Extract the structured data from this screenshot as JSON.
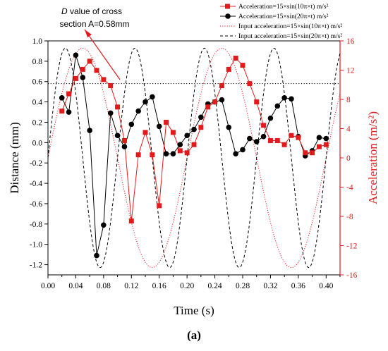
{
  "figure_label": "(a)",
  "colors": {
    "accel_10": "#e31a1c",
    "accel_20": "#000000",
    "input_10": "#e31a1c",
    "input_20": "#000000",
    "threshold": "#000000",
    "right_axis": "#e31a1c",
    "arrow": "#e31a1c"
  },
  "chart_data": {
    "type": "line",
    "xlabel": "Time (s)",
    "ylabel_left": "Distance (mm)",
    "ylabel_right": "Acceleration (m/s²)",
    "xlim": [
      0.0,
      0.42
    ],
    "ylim_left": [
      -1.3,
      1.0
    ],
    "ylim_right": [
      -16,
      16
    ],
    "x_ticks": [
      "0.00",
      "0.04",
      "0.08",
      "0.12",
      "0.16",
      "0.20",
      "0.24",
      "0.28",
      "0.32",
      "0.36",
      "0.40"
    ],
    "y_left_ticks": [
      "1.0",
      "0.8",
      "0.6",
      "0.4",
      "0.2",
      "0.0",
      "-0.2",
      "-0.4",
      "-0.6",
      "-0.8",
      "-1.0",
      "-1.2"
    ],
    "y_right_ticks": [
      "16",
      "12",
      "8",
      "4",
      "0",
      "-4",
      "-8",
      "-12",
      "-16"
    ],
    "annotation": {
      "line1_italic": "D",
      "line1_rest": " value of cross",
      "line2": "section A=0.58mm",
      "threshold_value": 0.58
    },
    "legend": [
      {
        "label": "Acceleration=15×sin(10π×t) m/s²",
        "style": "red-square-line"
      },
      {
        "label": "Acceleration=15×sin(20π×t) m/s²",
        "style": "black-circle-line"
      },
      {
        "label": "Input acceleration=15×sin(10π×t) m/s²",
        "style": "red-dotted"
      },
      {
        "label": "Input acceleration=15×sin(20π×t) m/s²",
        "style": "black-dashed"
      }
    ],
    "series": [
      {
        "name": "Acceleration=15×sin(10π×t) m/s²",
        "axis": "left",
        "x": [
          0.02,
          0.03,
          0.04,
          0.05,
          0.06,
          0.07,
          0.08,
          0.09,
          0.1,
          0.11,
          0.12,
          0.13,
          0.14,
          0.15,
          0.16,
          0.17,
          0.18,
          0.19,
          0.2,
          0.21,
          0.22,
          0.23,
          0.24,
          0.25,
          0.26,
          0.27,
          0.28,
          0.29,
          0.3,
          0.31,
          0.32,
          0.33,
          0.34,
          0.35,
          0.36,
          0.37,
          0.38,
          0.39,
          0.4
        ],
        "y": [
          0.31,
          0.48,
          0.63,
          0.72,
          0.8,
          0.71,
          0.62,
          0.56,
          0.35,
          0.02,
          -0.77,
          -0.12,
          0.1,
          -0.12,
          -0.62,
          0.2,
          0.1,
          -0.08,
          -0.1,
          -0.02,
          0.15,
          0.35,
          0.4,
          0.56,
          0.72,
          0.83,
          0.76,
          0.58,
          0.4,
          0.17,
          0.02,
          0.02,
          -0.02,
          0.07,
          0.05,
          -0.1,
          -0.1,
          -0.04,
          -0.02
        ]
      },
      {
        "name": "Acceleration=15×sin(20π×t) m/s²",
        "axis": "left",
        "x": [
          0.02,
          0.03,
          0.04,
          0.05,
          0.06,
          0.07,
          0.08,
          0.09,
          0.1,
          0.11,
          0.12,
          0.13,
          0.14,
          0.15,
          0.16,
          0.17,
          0.18,
          0.19,
          0.2,
          0.21,
          0.22,
          0.23,
          0.24,
          0.25,
          0.26,
          0.27,
          0.28,
          0.29,
          0.3,
          0.31,
          0.32,
          0.33,
          0.34,
          0.35,
          0.36,
          0.37,
          0.38,
          0.39,
          0.4
        ],
        "y": [
          0.44,
          0.3,
          0.86,
          0.64,
          0.12,
          -1.11,
          -0.81,
          0.29,
          0.07,
          -0.04,
          0.18,
          0.31,
          0.4,
          0.45,
          0.16,
          -0.11,
          -0.11,
          -0.02,
          0.07,
          0.13,
          0.25,
          0.38,
          0.4,
          0.42,
          0.15,
          -0.11,
          -0.07,
          0.04,
          0.01,
          0.06,
          0.24,
          0.36,
          0.44,
          0.43,
          0.06,
          -0.13,
          -0.08,
          0.05,
          0.04
        ]
      },
      {
        "name": "Input acceleration=15×sin(10π×t) m/s²",
        "axis": "right",
        "function": "15*sin(10*pi*t)",
        "x_range": [
          0.0,
          0.42
        ]
      },
      {
        "name": "Input acceleration=15×sin(20π×t) m/s²",
        "axis": "right",
        "function": "15*sin(20*pi*t)",
        "x_range": [
          0.0,
          0.42
        ]
      }
    ]
  }
}
